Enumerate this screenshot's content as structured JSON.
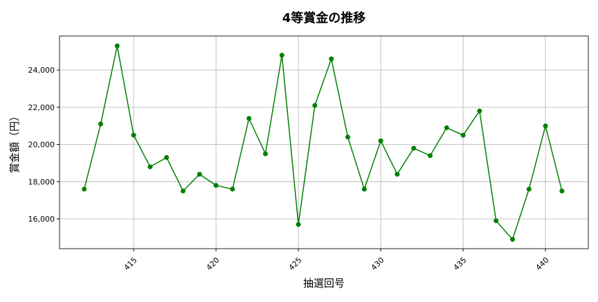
{
  "chart_data": {
    "type": "line",
    "title": "4等賞金の推移",
    "xlabel": "抽選回号",
    "ylabel": "賞金額（円）",
    "x": [
      412,
      413,
      414,
      415,
      416,
      417,
      418,
      419,
      420,
      421,
      422,
      423,
      424,
      425,
      426,
      427,
      428,
      429,
      430,
      431,
      432,
      433,
      434,
      435,
      436,
      437,
      438,
      439,
      440,
      441
    ],
    "series": [
      {
        "values": [
          17600,
          21100,
          25300,
          20500,
          18800,
          19300,
          17500,
          18400,
          17800,
          17600,
          21400,
          19500,
          24800,
          15700,
          22100,
          24600,
          20400,
          17600,
          20200,
          18400,
          19800,
          19400,
          20900,
          20500,
          21800,
          15900,
          14900,
          17600,
          21000,
          17500
        ],
        "color": "#008000",
        "marker": "circle"
      }
    ],
    "xlim": [
      410.5,
      442.6
    ],
    "ylim": [
      14400,
      25830
    ],
    "xticks": [
      415,
      420,
      425,
      430,
      435,
      440
    ],
    "xtick_labels": [
      "415",
      "420",
      "425",
      "430",
      "435",
      "440"
    ],
    "yticks": [
      16000,
      18000,
      20000,
      22000,
      24000
    ],
    "ytick_labels": [
      "16,000",
      "18,000",
      "20,000",
      "22,000",
      "24,000"
    ],
    "grid": true
  }
}
